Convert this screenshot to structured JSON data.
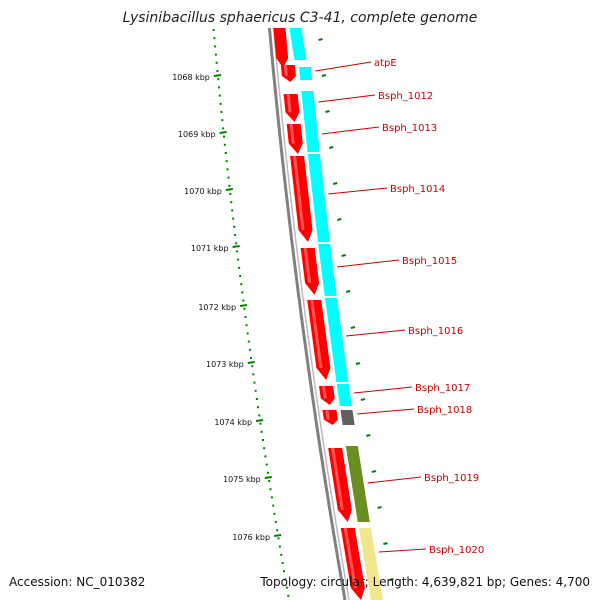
{
  "title": "Lysinibacillus sphaericus C3-41, complete genome",
  "footer": {
    "accession": "Accession: NC_010382",
    "summary": "Topology: circular; Length: 4,639,821 bp; Genes: 4,700"
  },
  "ruler": {
    "labels": [
      "1068 kbp",
      "1069 kbp",
      "1070 kbp",
      "1071 kbp",
      "1072 kbp",
      "1073 kbp",
      "1074 kbp",
      "1075 kbp",
      "1076 kbp"
    ]
  },
  "genes": [
    {
      "name": "atpE",
      "color": "#ff0000"
    },
    {
      "name": "Bsph_1012",
      "color": "#ff0000"
    },
    {
      "name": "Bsph_1013",
      "color": "#ff0000"
    },
    {
      "name": "Bsph_1014",
      "color": "#ff0000"
    },
    {
      "name": "Bsph_1015",
      "color": "#ff0000"
    },
    {
      "name": "Bsph_1016",
      "color": "#ff0000"
    },
    {
      "name": "Bsph_1017",
      "color": "#ff0000"
    },
    {
      "name": "Bsph_1018",
      "color": "#ff0000"
    },
    {
      "name": "Bsph_1019",
      "color": "#ff0000"
    },
    {
      "name": "Bsph_1020",
      "color": "#ff0000"
    }
  ],
  "colors": {
    "forward_strand": "#ff0000",
    "cog_cyan": "#00ffff",
    "cog_olive": "#6b8e23",
    "cog_khaki": "#f0e68c",
    "cog_gray": "#606060",
    "ruler": "#008000",
    "backbone": "#808080",
    "label": "#cc0000"
  }
}
